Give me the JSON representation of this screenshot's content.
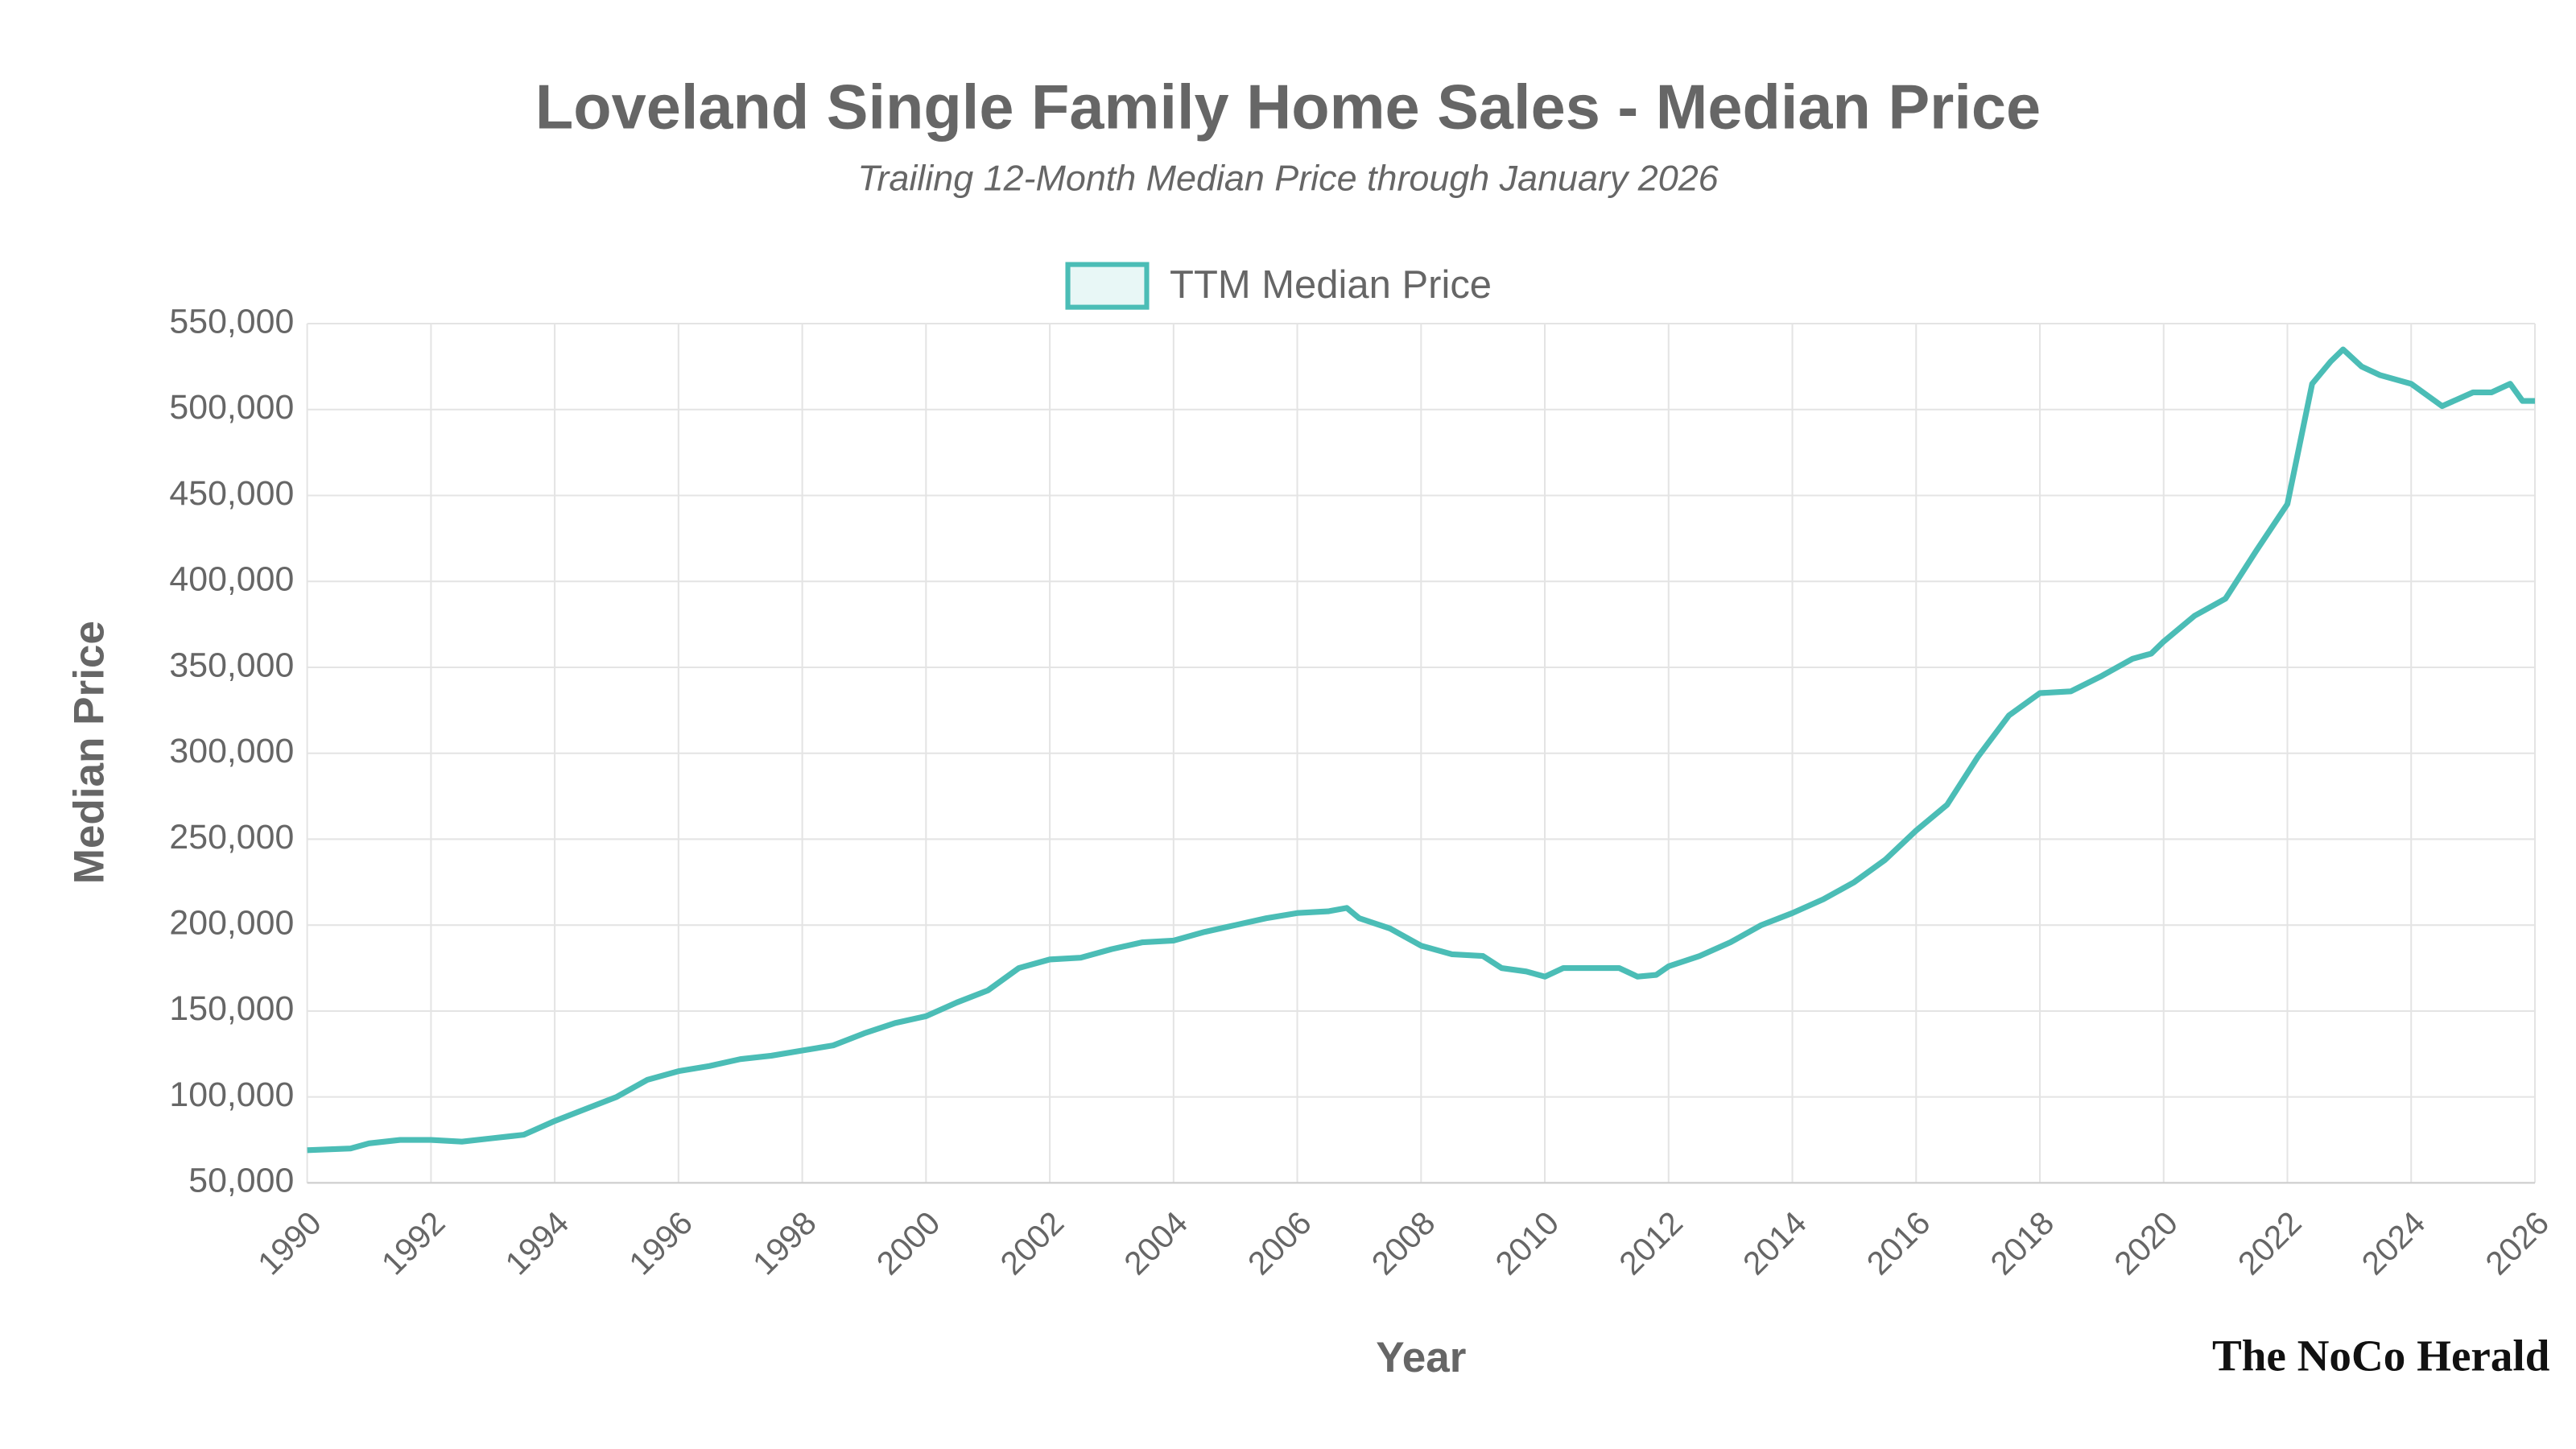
{
  "chart_data": {
    "type": "line",
    "title": "Loveland Single Family Home Sales - Median Price",
    "subtitle": "Trailing 12-Month Median Price through January 2026",
    "x_label": "Year",
    "y_label": "Median Price",
    "brand": "The NoCo Herald",
    "legend_position": "top",
    "grid": true,
    "x": [
      1990,
      1990.7,
      1991,
      1991.5,
      1992,
      1992.5,
      1993,
      1993.5,
      1994,
      1994.5,
      1995,
      1995.5,
      1996,
      1996.5,
      1997,
      1997.5,
      1998,
      1998.5,
      1999,
      1999.5,
      2000,
      2000.5,
      2001,
      2001.5,
      2002,
      2002.5,
      2003,
      2003.5,
      2004,
      2004.5,
      2005,
      2005.5,
      2006,
      2006.5,
      2006.8,
      2007,
      2007.5,
      2008,
      2008.5,
      2009,
      2009.3,
      2009.7,
      2010,
      2010.3,
      2010.7,
      2011.2,
      2011.5,
      2011.8,
      2012,
      2012.5,
      2013,
      2013.5,
      2014,
      2014.5,
      2015,
      2015.5,
      2016,
      2016.5,
      2017,
      2017.5,
      2018,
      2018.5,
      2019,
      2019.5,
      2019.8,
      2020,
      2020.5,
      2021,
      2021.5,
      2022,
      2022.2,
      2022.4,
      2022.7,
      2022.9,
      2023.2,
      2023.5,
      2024,
      2024.5,
      2025,
      2025.3,
      2025.6,
      2025.8,
      2026
    ],
    "series": [
      {
        "name": "TTM Median Price",
        "color": "#4bbdb6",
        "values": [
          69000,
          70000,
          73000,
          75000,
          75000,
          74000,
          76000,
          78000,
          86000,
          93000,
          100000,
          110000,
          115000,
          118000,
          122000,
          124000,
          127000,
          130000,
          137000,
          143000,
          147000,
          155000,
          162000,
          175000,
          180000,
          181000,
          186000,
          190000,
          191000,
          196000,
          200000,
          204000,
          207000,
          208000,
          210000,
          204000,
          198000,
          188000,
          183000,
          182000,
          175000,
          173000,
          170000,
          175000,
          175000,
          175000,
          170000,
          171000,
          176000,
          182000,
          190000,
          200000,
          207000,
          215000,
          225000,
          238000,
          255000,
          270000,
          298000,
          322000,
          335000,
          336000,
          345000,
          355000,
          358000,
          365000,
          380000,
          390000,
          418000,
          445000,
          480000,
          515000,
          528000,
          535000,
          525000,
          520000,
          515000,
          502000,
          510000,
          510000,
          515000,
          505000,
          505000
        ]
      }
    ],
    "xlim": [
      1990,
      2026
    ],
    "xticks": [
      1990,
      1992,
      1994,
      1996,
      1998,
      2000,
      2002,
      2004,
      2006,
      2008,
      2010,
      2012,
      2014,
      2016,
      2018,
      2020,
      2022,
      2024,
      2026
    ],
    "ylim": [
      50000,
      550000
    ],
    "yticks": [
      {
        "value": 50000,
        "label": "50,000"
      },
      {
        "value": 100000,
        "label": "100,000"
      },
      {
        "value": 150000,
        "label": "150,000"
      },
      {
        "value": 200000,
        "label": "200,000"
      },
      {
        "value": 250000,
        "label": "250,000"
      },
      {
        "value": 300000,
        "label": "300,000"
      },
      {
        "value": 350000,
        "label": "350,000"
      },
      {
        "value": 400000,
        "label": "400,000"
      },
      {
        "value": 450000,
        "label": "450,000"
      },
      {
        "value": 500000,
        "label": "500,000"
      },
      {
        "value": 550000,
        "label": "550,000"
      }
    ]
  }
}
